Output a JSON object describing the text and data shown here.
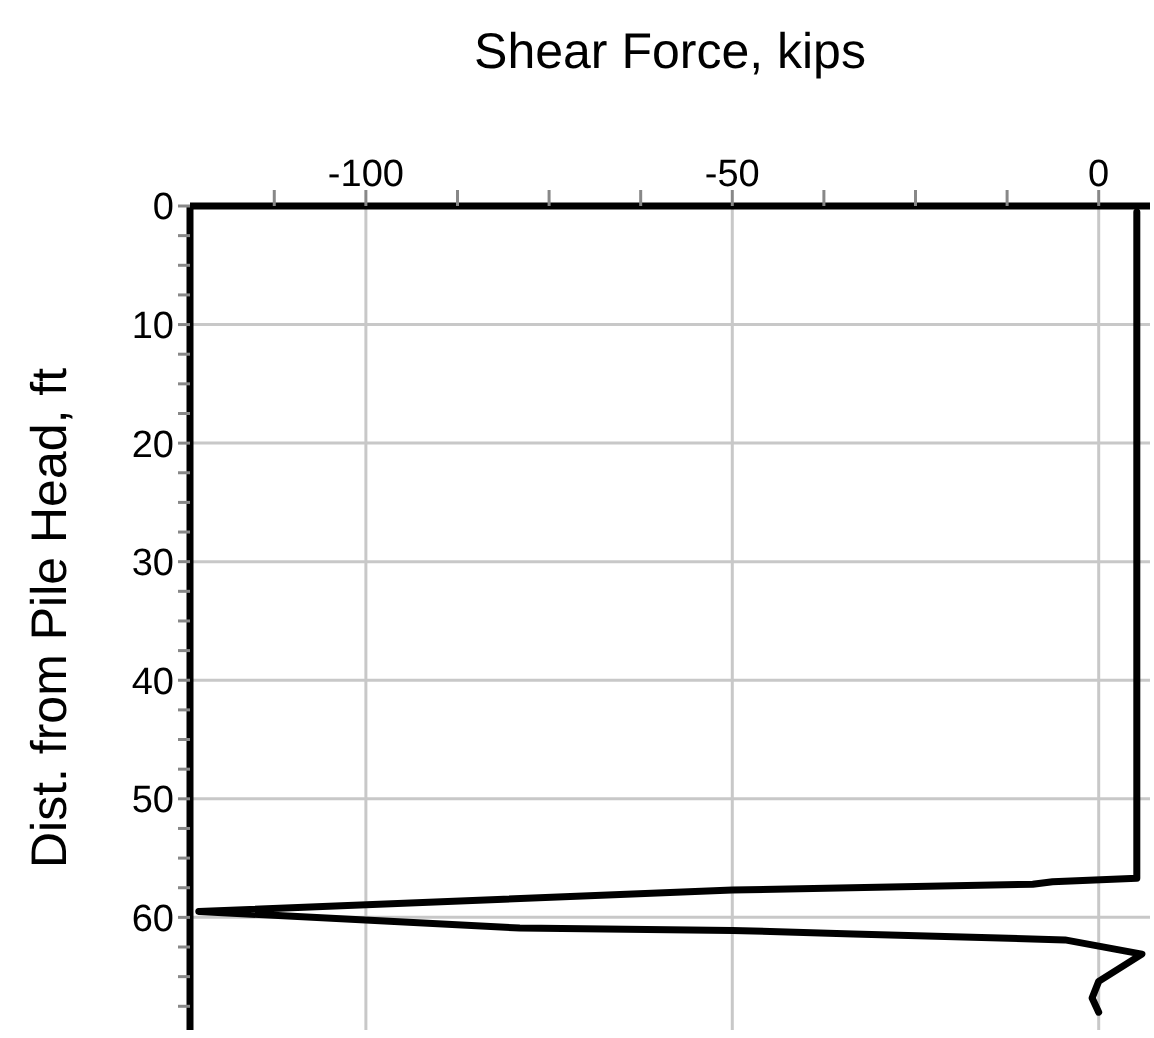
{
  "chart_data": {
    "type": "line",
    "xlabel": "Shear Force, kips",
    "ylabel": "Dist. from Pile Head, ft",
    "series": [
      {
        "color": "#000000",
        "x": [
          5.2,
          5.2,
          5.2,
          -6.3,
          -9,
          -50,
          -122.8,
          -79,
          -50,
          -33.5,
          -4.6,
          5.9,
          0,
          -0.9,
          0
        ],
        "values": [
          0.5,
          30,
          56.7,
          57.0,
          57.2,
          57.7,
          59.5,
          60.9,
          61.1,
          61.4,
          61.9,
          63.1,
          65.4,
          66.8,
          68
        ]
      }
    ],
    "xlim": [
      -124,
      7
    ],
    "xticks": [
      {
        "value": -112.5,
        "label": null
      },
      -100,
      {
        "value": -87.5,
        "label": null
      },
      {
        "value": -75,
        "label": null
      },
      {
        "value": -62.5,
        "label": null
      },
      -50,
      {
        "value": -37.5,
        "label": null
      },
      {
        "value": -25,
        "label": null
      },
      {
        "value": -12.5,
        "label": null
      },
      0
    ],
    "ylim": [
      69.5,
      0
    ],
    "yticks": [
      0,
      {
        "value": 2.5,
        "label": null
      },
      {
        "value": 5,
        "label": null
      },
      {
        "value": 7.5,
        "label": null
      },
      10,
      {
        "value": 12.5,
        "label": null
      },
      {
        "value": 15,
        "label": null
      },
      {
        "value": 17.5,
        "label": null
      },
      20,
      {
        "value": 22.5,
        "label": null
      },
      {
        "value": 25,
        "label": null
      },
      {
        "value": 27.5,
        "label": null
      },
      30,
      {
        "value": 32.5,
        "label": null
      },
      {
        "value": 35,
        "label": null
      },
      {
        "value": 37.5,
        "label": null
      },
      40,
      {
        "value": 42.5,
        "label": null
      },
      {
        "value": 45,
        "label": null
      },
      {
        "value": 47.5,
        "label": null
      },
      50,
      {
        "value": 52.5,
        "label": null
      },
      {
        "value": 55,
        "label": null
      },
      {
        "value": 57.5,
        "label": null
      },
      60,
      {
        "value": 62.5,
        "label": null
      },
      {
        "value": 65,
        "label": null
      },
      {
        "value": 67.5,
        "label": null
      }
    ],
    "grid": true,
    "marker": "none",
    "line_style": "solid"
  }
}
